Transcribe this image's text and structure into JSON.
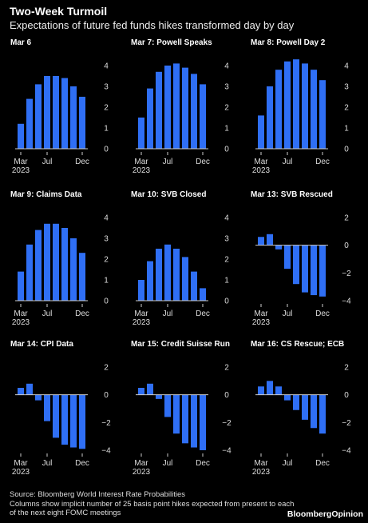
{
  "header": {
    "title": "Two-Week Turmoil",
    "subtitle": "Expectations of future fed funds hikes transformed day by day"
  },
  "footer": {
    "source": "Source: Bloomberg World Interest Rate Probabilities",
    "note": "Columns show implicit number of 25 basis point hikes expected from present to each of the next eight FOMC meetings"
  },
  "brand": {
    "name": "BloombergOpinion"
  },
  "colors": {
    "bar": "#2f6ff5",
    "background": "#000000",
    "axis": "#cccccc"
  },
  "chart_data": [
    {
      "type": "bar",
      "title": "Mar 6",
      "values": [
        1.2,
        2.4,
        3.1,
        3.5,
        3.5,
        3.4,
        3.0,
        2.5
      ],
      "ylim": [
        0,
        4
      ],
      "yticks": [
        0,
        1,
        2,
        3,
        4
      ],
      "xticks": [
        "Mar 2023",
        "Jul",
        "Dec"
      ]
    },
    {
      "type": "bar",
      "title": "Mar 7: Powell Speaks",
      "values": [
        1.5,
        2.9,
        3.7,
        4.0,
        4.1,
        3.9,
        3.6,
        3.1
      ],
      "ylim": [
        0,
        4
      ],
      "yticks": [
        0,
        1,
        2,
        3,
        4
      ],
      "xticks": [
        "Mar 2023",
        "Jul",
        "Dec"
      ]
    },
    {
      "type": "bar",
      "title": "Mar 8: Powell Day 2",
      "values": [
        1.6,
        3.0,
        3.8,
        4.2,
        4.3,
        4.1,
        3.8,
        3.3
      ],
      "ylim": [
        0,
        4
      ],
      "yticks": [
        0,
        1,
        2,
        3,
        4
      ],
      "xticks": [
        "Mar 2023",
        "Jul",
        "Dec"
      ]
    },
    {
      "type": "bar",
      "title": "Mar 9: Claims Data",
      "values": [
        1.4,
        2.7,
        3.4,
        3.7,
        3.7,
        3.5,
        3.0,
        2.3
      ],
      "ylim": [
        0,
        4
      ],
      "yticks": [
        0,
        1,
        2,
        3,
        4
      ],
      "xticks": [
        "Mar 2023",
        "Jul",
        "Dec"
      ]
    },
    {
      "type": "bar",
      "title": "Mar 10: SVB Closed",
      "values": [
        1.0,
        1.9,
        2.5,
        2.7,
        2.5,
        2.1,
        1.4,
        0.6
      ],
      "ylim": [
        0,
        4
      ],
      "yticks": [
        0,
        1,
        2,
        3,
        4
      ],
      "xticks": [
        "Mar 2023",
        "Jul",
        "Dec"
      ]
    },
    {
      "type": "bar",
      "title": "Mar 13: SVB Rescued",
      "values": [
        0.6,
        0.8,
        -0.3,
        -1.7,
        -2.8,
        -3.4,
        -3.6,
        -3.7
      ],
      "ylim": [
        -4,
        2
      ],
      "yticks": [
        -4,
        -2,
        0,
        2
      ],
      "xticks": [
        "Mar 2023",
        "Jul",
        "Dec"
      ]
    },
    {
      "type": "bar",
      "title": "Mar 14: CPI Data",
      "values": [
        0.5,
        0.8,
        -0.4,
        -1.9,
        -3.1,
        -3.6,
        -3.8,
        -3.9
      ],
      "ylim": [
        -4,
        2
      ],
      "yticks": [
        -4,
        -2,
        0,
        2
      ],
      "xticks": [
        "Mar 2023",
        "Jul",
        "Dec"
      ]
    },
    {
      "type": "bar",
      "title": "Mar 15: Credit Suisse Run",
      "values": [
        0.5,
        0.8,
        -0.3,
        -1.6,
        -2.8,
        -3.5,
        -3.8,
        -4.0
      ],
      "ylim": [
        -4,
        2
      ],
      "yticks": [
        -4,
        -2,
        0,
        2
      ],
      "xticks": [
        "Mar 2023",
        "Jul",
        "Dec"
      ]
    },
    {
      "type": "bar",
      "title": "Mar 16: CS Rescue; ECB",
      "values": [
        0.6,
        1.0,
        0.6,
        -0.4,
        -1.1,
        -1.8,
        -2.4,
        -2.8
      ],
      "ylim": [
        -4,
        2
      ],
      "yticks": [
        -4,
        -2,
        0,
        2
      ],
      "xticks": [
        "Mar 2023",
        "Jul",
        "Dec"
      ]
    }
  ]
}
